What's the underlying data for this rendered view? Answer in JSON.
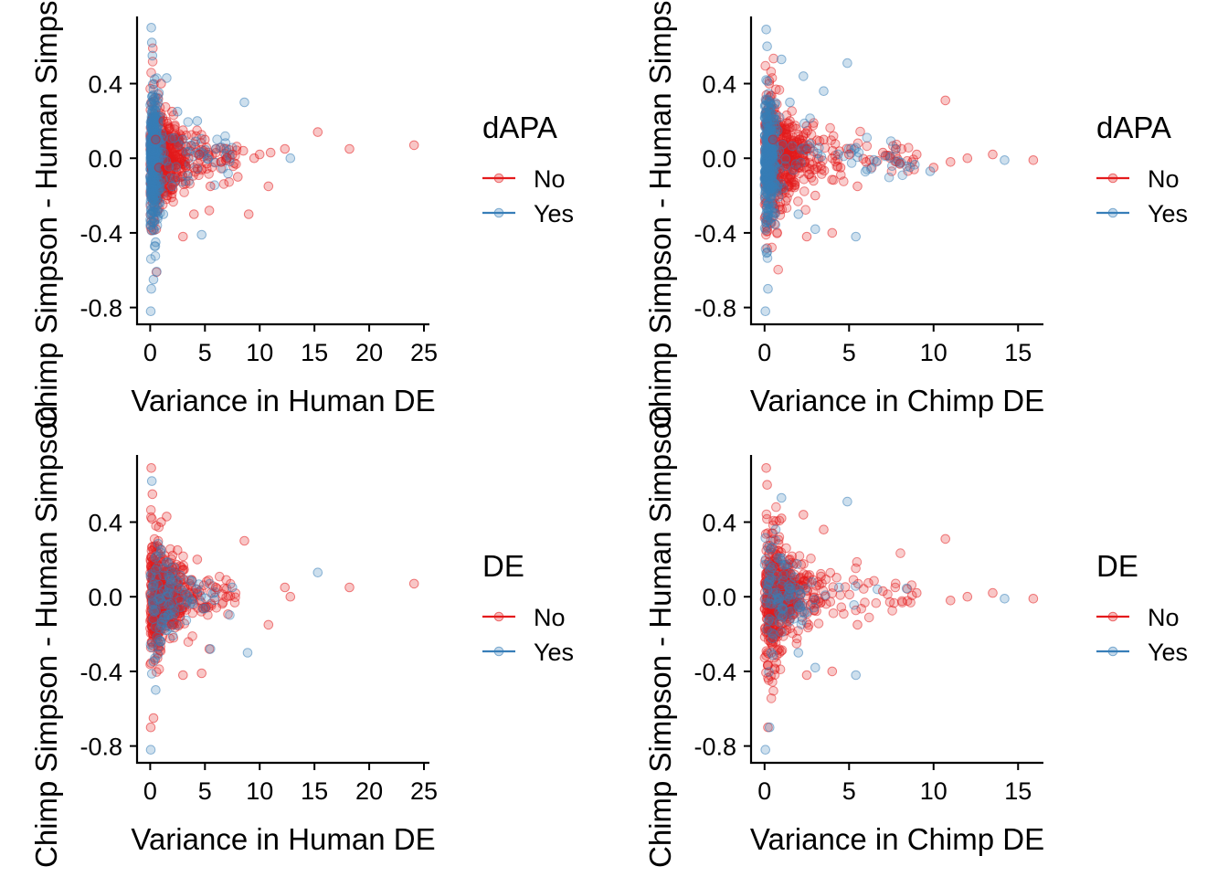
{
  "colors": {
    "No": "#E41A1C",
    "Yes": "#377EB8"
  },
  "chart_data": [
    {
      "type": "scatter",
      "xlabel": "Variance in Human DE",
      "ylabel": "Chimp Simpson - Human Simpson",
      "xticks": [
        0,
        5,
        10,
        15,
        20,
        25
      ],
      "yticks": [
        -0.8,
        -0.4,
        0.0,
        0.4
      ],
      "xlim": [
        -1.2,
        25.5
      ],
      "ylim": [
        -0.89,
        0.76
      ],
      "legend": {
        "title": "dAPA",
        "entries": [
          "No",
          "Yes"
        ],
        "position": "right"
      },
      "series": [
        {
          "name": "No",
          "points": [
            [
              0.5,
              0.1
            ],
            [
              0.8,
              -0.05
            ],
            [
              1.2,
              0.2
            ],
            [
              1.5,
              -0.2
            ],
            [
              2,
              0.05
            ],
            [
              2.5,
              -0.1
            ],
            [
              3,
              0.15
            ],
            [
              3.5,
              0
            ],
            [
              4,
              -0.05
            ],
            [
              4.5,
              0.02
            ],
            [
              5,
              0.1
            ],
            [
              5.5,
              -0.15
            ],
            [
              6,
              0.05
            ],
            [
              6.5,
              -0.02
            ],
            [
              7,
              0
            ],
            [
              7.5,
              0.02
            ],
            [
              8,
              -0.1
            ],
            [
              8.5,
              0.04
            ],
            [
              9,
              -0.3
            ],
            [
              9.5,
              0
            ],
            [
              10,
              0.02
            ],
            [
              10.8,
              -0.15
            ],
            [
              11,
              0.03
            ],
            [
              12.3,
              0.05
            ],
            [
              15.3,
              0.14
            ],
            [
              18.2,
              0.05
            ],
            [
              24.1,
              0.07
            ],
            [
              4,
              -0.3
            ],
            [
              3,
              -0.42
            ],
            [
              2,
              0.25
            ],
            [
              1,
              0.4
            ],
            [
              5.4,
              -0.28
            ]
          ]
        },
        {
          "name": "Yes",
          "points": [
            [
              0.1,
              0.7
            ],
            [
              0.15,
              0.62
            ],
            [
              0.2,
              0.55
            ],
            [
              0.05,
              -0.82
            ],
            [
              0.1,
              -0.7
            ],
            [
              0.3,
              -0.65
            ],
            [
              0.5,
              -0.45
            ],
            [
              1.5,
              0.43
            ],
            [
              2.5,
              0.25
            ],
            [
              4.3,
              0.2
            ],
            [
              8.6,
              0.3
            ],
            [
              12.8,
              0
            ],
            [
              4.7,
              -0.41
            ],
            [
              1.2,
              -0.3
            ],
            [
              0.8,
              0.35
            ],
            [
              6,
              0.05
            ],
            [
              3,
              0.1
            ],
            [
              2,
              -0.15
            ]
          ]
        }
      ]
    },
    {
      "type": "scatter",
      "xlabel": "Variance in Chimp DE",
      "ylabel": "Chimp Simpson - Human Simpson",
      "xticks": [
        0,
        5,
        10,
        15
      ],
      "yticks": [
        -0.8,
        -0.4,
        0.0,
        0.4
      ],
      "xlim": [
        -0.8,
        16.5
      ],
      "ylim": [
        -0.89,
        0.76
      ],
      "legend": {
        "title": "dAPA",
        "entries": [
          "No",
          "Yes"
        ],
        "position": "right"
      },
      "series": [
        {
          "name": "No",
          "points": [
            [
              0.5,
              0.1
            ],
            [
              1,
              -0.1
            ],
            [
              1.5,
              0.2
            ],
            [
              2,
              -0.05
            ],
            [
              2.5,
              0.05
            ],
            [
              3,
              -0.2
            ],
            [
              3.5,
              0.1
            ],
            [
              4,
              0
            ],
            [
              4.5,
              -0.05
            ],
            [
              5,
              0.02
            ],
            [
              6,
              -0.02
            ],
            [
              7,
              0.03
            ],
            [
              8,
              -0.03
            ],
            [
              9,
              0.02
            ],
            [
              10,
              -0.05
            ],
            [
              10.7,
              0.31
            ],
            [
              11,
              -0.02
            ],
            [
              12,
              0
            ],
            [
              13.5,
              0.02
            ],
            [
              15.9,
              -0.01
            ],
            [
              2.5,
              -0.42
            ],
            [
              4,
              -0.4
            ],
            [
              5.5,
              -0.15
            ]
          ]
        },
        {
          "name": "Yes",
          "points": [
            [
              0.1,
              0.69
            ],
            [
              0.15,
              0.6
            ],
            [
              0.05,
              -0.82
            ],
            [
              0.2,
              -0.7
            ],
            [
              1,
              0.53
            ],
            [
              2.3,
              0.44
            ],
            [
              3.5,
              0.36
            ],
            [
              4.9,
              0.51
            ],
            [
              5.4,
              -0.42
            ],
            [
              3,
              -0.38
            ],
            [
              2,
              -0.3
            ],
            [
              14.2,
              -0.01
            ],
            [
              9.8,
              -0.07
            ],
            [
              6.6,
              -0.02
            ],
            [
              1.5,
              0.3
            ]
          ]
        }
      ]
    },
    {
      "type": "scatter",
      "xlabel": "Variance in Human DE",
      "ylabel": "Chimp Simpson - Human Simpson",
      "xticks": [
        0,
        5,
        10,
        15,
        20,
        25
      ],
      "yticks": [
        -0.8,
        -0.4,
        0.0,
        0.4
      ],
      "xlim": [
        -1.2,
        25.5
      ],
      "ylim": [
        -0.89,
        0.76
      ],
      "legend": {
        "title": "DE",
        "entries": [
          "No",
          "Yes"
        ],
        "position": "right"
      },
      "series": [
        {
          "name": "No",
          "points": [
            [
              0.1,
              0.69
            ],
            [
              0.2,
              0.55
            ],
            [
              0.05,
              -0.7
            ],
            [
              0.3,
              -0.65
            ],
            [
              1.5,
              0.43
            ],
            [
              2.5,
              0.25
            ],
            [
              4.3,
              0.2
            ],
            [
              8.6,
              0.3
            ],
            [
              12.8,
              0
            ],
            [
              4.7,
              -0.41
            ],
            [
              3,
              -0.42
            ],
            [
              18.2,
              0.05
            ],
            [
              24.1,
              0.07
            ],
            [
              10.8,
              -0.15
            ],
            [
              12.3,
              0.05
            ],
            [
              6,
              0.05
            ],
            [
              2,
              -0.15
            ],
            [
              1,
              0.4
            ],
            [
              5.4,
              -0.28
            ]
          ]
        },
        {
          "name": "Yes",
          "points": [
            [
              0.15,
              0.62
            ],
            [
              0.05,
              -0.82
            ],
            [
              15.3,
              0.13
            ],
            [
              8.9,
              -0.3
            ],
            [
              5.5,
              -0.28
            ],
            [
              7.5,
              0.05
            ],
            [
              0.5,
              -0.5
            ],
            [
              1,
              0.25
            ]
          ]
        }
      ]
    },
    {
      "type": "scatter",
      "xlabel": "Variance in Chimp DE",
      "ylabel": "Chimp Simpson - Human Simpson",
      "xticks": [
        0,
        5,
        10,
        15
      ],
      "yticks": [
        -0.8,
        -0.4,
        0.0,
        0.4
      ],
      "xlim": [
        -0.8,
        16.5
      ],
      "ylim": [
        -0.89,
        0.76
      ],
      "legend": {
        "title": "DE",
        "entries": [
          "No",
          "Yes"
        ],
        "position": "right"
      },
      "series": [
        {
          "name": "No",
          "points": [
            [
              0.1,
              0.69
            ],
            [
              0.15,
              0.6
            ],
            [
              1,
              0.42
            ],
            [
              2.3,
              0.44
            ],
            [
              3.5,
              0.36
            ],
            [
              10.7,
              0.31
            ],
            [
              15.9,
              -0.01
            ],
            [
              13.5,
              0.02
            ],
            [
              12,
              0
            ],
            [
              11,
              -0.02
            ],
            [
              9,
              0.02
            ],
            [
              7,
              0.03
            ],
            [
              5.5,
              -0.15
            ],
            [
              4,
              -0.4
            ],
            [
              2.5,
              -0.42
            ],
            [
              0.2,
              -0.7
            ],
            [
              1.5,
              0.2
            ]
          ]
        },
        {
          "name": "Yes",
          "points": [
            [
              0.05,
              -0.82
            ],
            [
              1,
              0.53
            ],
            [
              4.9,
              0.51
            ],
            [
              5.4,
              -0.42
            ],
            [
              14.2,
              -0.01
            ],
            [
              3,
              -0.38
            ],
            [
              2,
              -0.3
            ],
            [
              0.3,
              -0.7
            ]
          ]
        }
      ]
    }
  ]
}
